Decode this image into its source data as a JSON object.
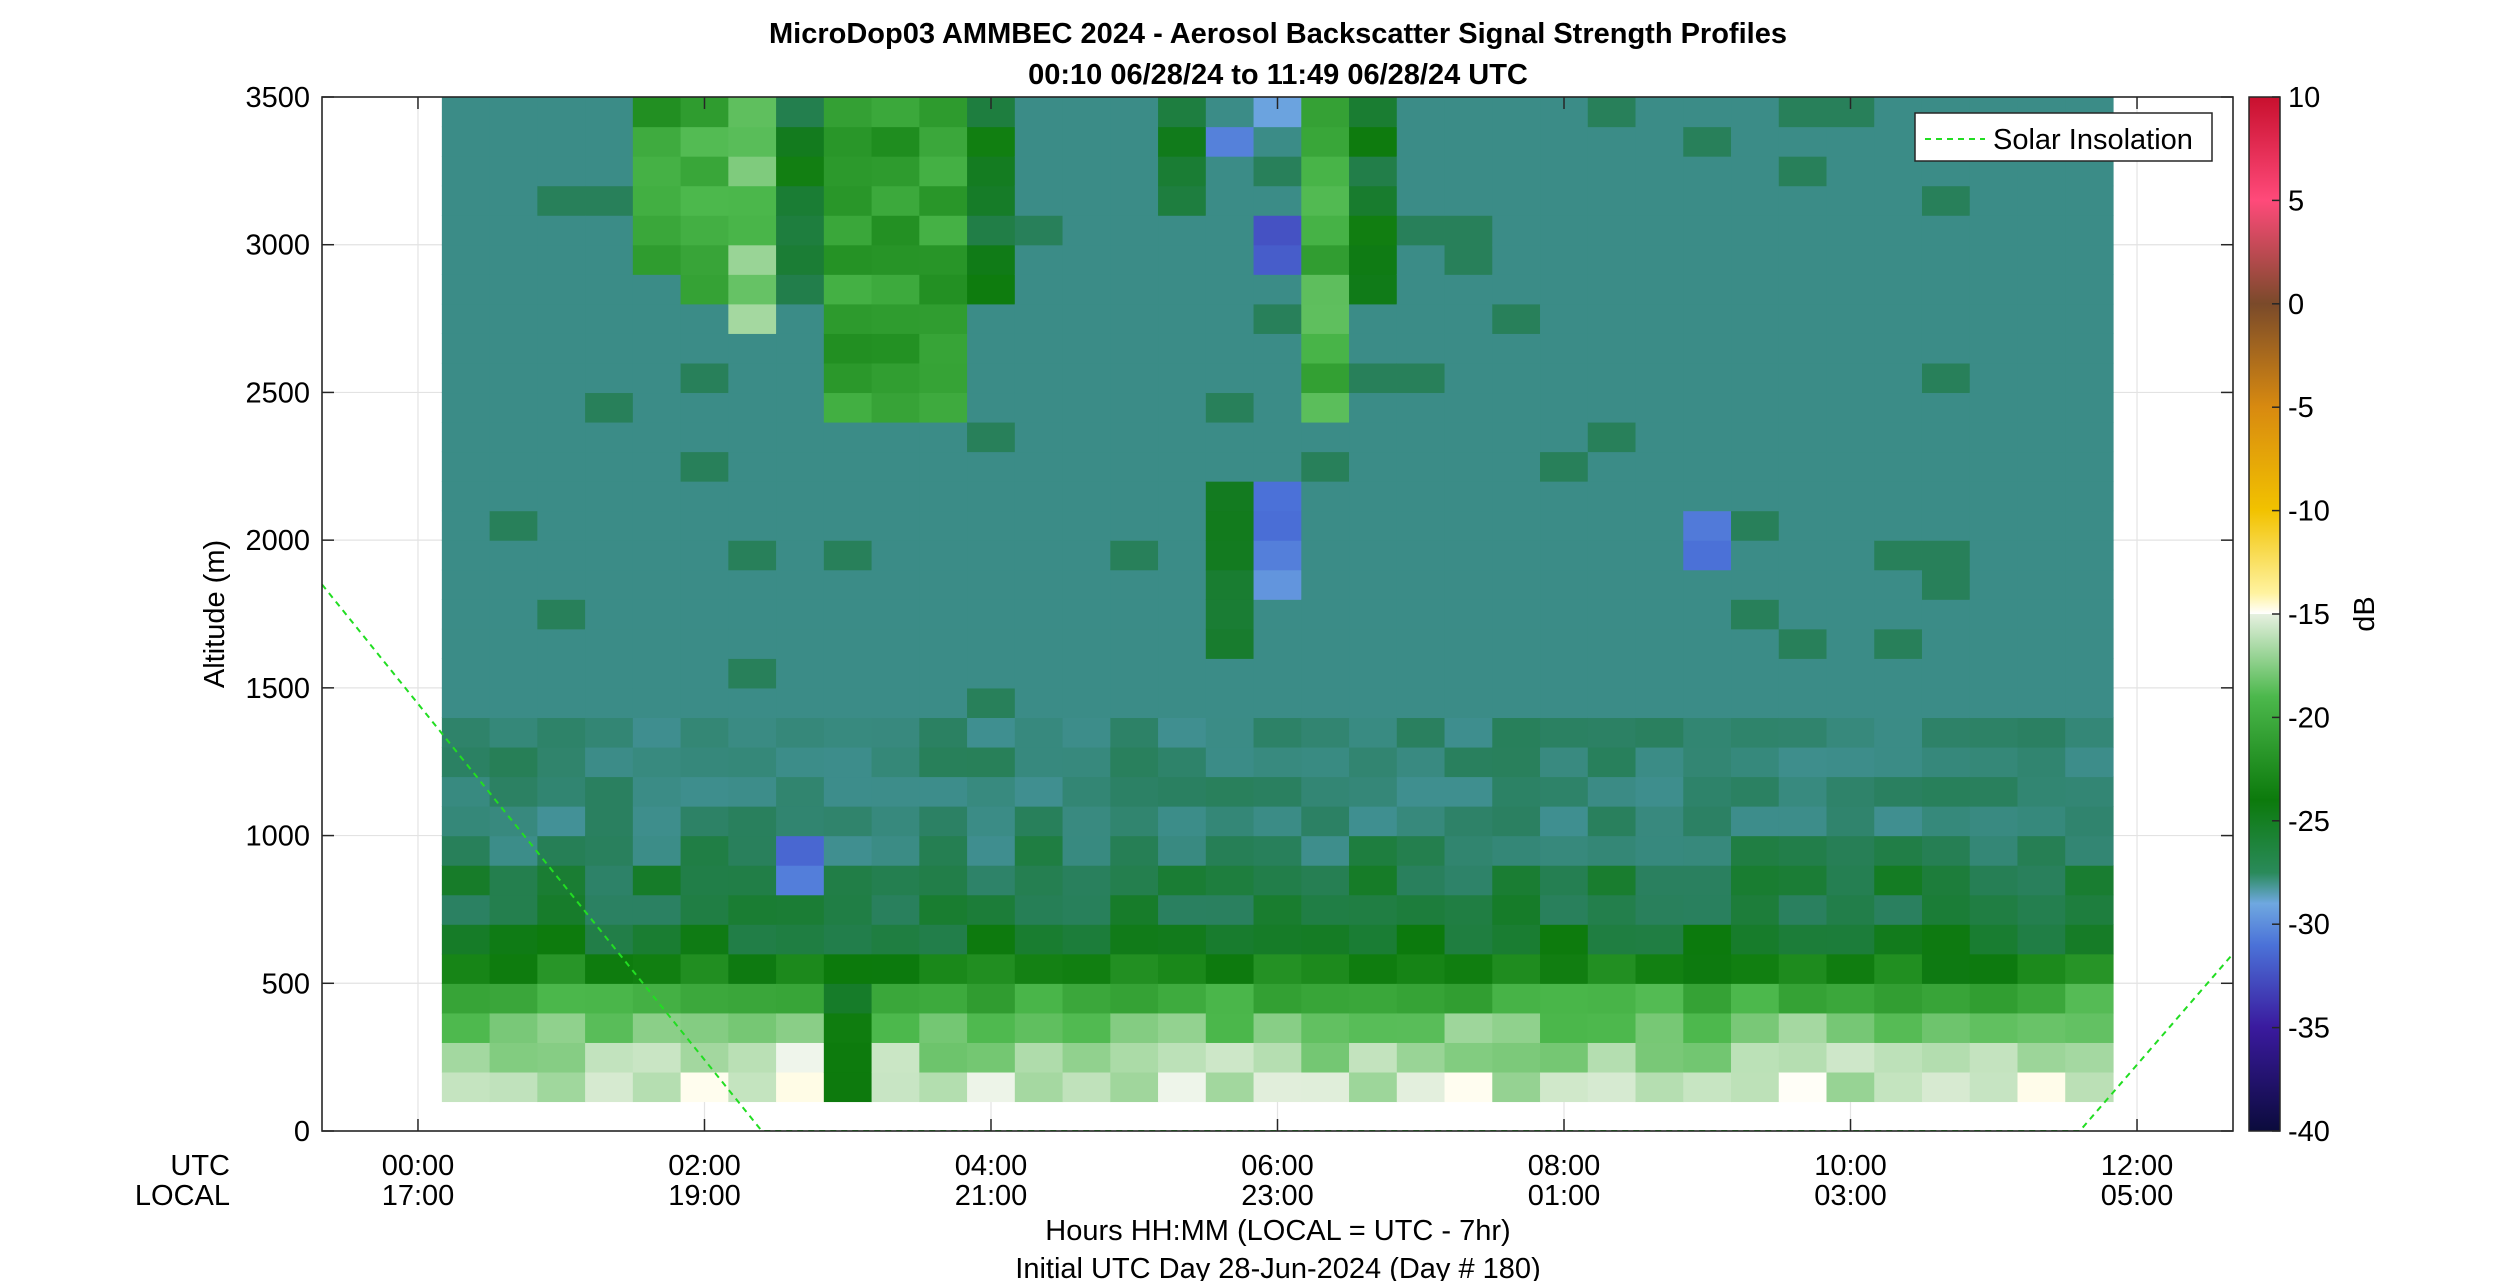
{
  "chart_data": {
    "type": "heatmap",
    "title": "MicroDop03 AMMBEC 2024 - Aerosol Backscatter Signal Strength Profiles",
    "subtitle": "00:10 06/28/24 to 11:49 06/28/24  UTC",
    "ylabel": "Altitude (m)",
    "xlabel": "Hours HH:MM  (LOCAL = UTC - 7hr)",
    "xlabel2": "Initial UTC Day 28-Jun-2024 (Day # 180)",
    "row_labels": {
      "utc": "UTC",
      "local": "LOCAL"
    },
    "x_ticks_utc": [
      "00:00",
      "02:00",
      "04:00",
      "06:00",
      "08:00",
      "10:00",
      "12:00"
    ],
    "x_ticks_local": [
      "17:00",
      "19:00",
      "21:00",
      "23:00",
      "01:00",
      "03:00",
      "05:00"
    ],
    "xlim_hours": [
      -0.67,
      12.67
    ],
    "y_ticks": [
      "0",
      "500",
      "1000",
      "1500",
      "2000",
      "2500",
      "3000",
      "3500"
    ],
    "ylim": [
      0,
      3500
    ],
    "colorbar": {
      "label": "dB",
      "ticks": [
        "10",
        "5",
        "0",
        "-5",
        "-10",
        "-15",
        "-20",
        "-25",
        "-30",
        "-35",
        "-40"
      ],
      "range": [
        -40,
        10
      ]
    },
    "legend": {
      "label": "Solar Insolation",
      "position": "top-right",
      "color": "#22dd22"
    },
    "grid": true,
    "data_start_hour": 0.1667,
    "data_end_hour": 11.8167,
    "profile_interval_hours": 0.3333,
    "altitude_start_m": 100,
    "altitude_step_m": 100,
    "background_value_db": -28,
    "lowlevel_profile_db": [
      -16,
      -17,
      -18,
      -20,
      -23,
      -25,
      -26,
      -26,
      -27
    ],
    "features": [
      {
        "hours": [
          0.5,
          1.0
        ],
        "altitude": [
          1000,
          1300
        ],
        "value_db": -27
      },
      {
        "hours": [
          1.5,
          1.9
        ],
        "altitude": [
          2900,
          3500
        ],
        "value_db": -21
      },
      {
        "hours": [
          1.9,
          2.2
        ],
        "altitude": [
          2800,
          3500
        ],
        "value_db": -20
      },
      {
        "hours": [
          2.2,
          2.55
        ],
        "altitude": [
          2700,
          3500
        ],
        "value_db": -18
      },
      {
        "hours": [
          2.35,
          2.55
        ],
        "altitude": [
          1500,
          2700
        ],
        "value_db": -26
      },
      {
        "hours": [
          2.55,
          2.95
        ],
        "altitude": [
          2800,
          3500
        ],
        "value_db": -25
      },
      {
        "hours": [
          2.95,
          3.7
        ],
        "altitude": [
          2400,
          3500
        ],
        "value_db": -21
      },
      {
        "hours": [
          3.7,
          4.0
        ],
        "altitude": [
          2850,
          3500
        ],
        "value_db": -25
      },
      {
        "hours": [
          5.1,
          5.4
        ],
        "altitude": [
          3150,
          3500
        ],
        "value_db": -25
      },
      {
        "hours": [
          5.4,
          5.7
        ],
        "altitude": [
          1650,
          2200
        ],
        "value_db": -26
      },
      {
        "hours": [
          6.15,
          6.5
        ],
        "altitude": [
          2450,
          3500
        ],
        "value_db": -20
      },
      {
        "hours": [
          6.5,
          6.8
        ],
        "altitude": [
          2800,
          3500
        ],
        "value_db": -25
      },
      {
        "hours": [
          2.95,
          3.05
        ],
        "altitude": [
          100,
          450
        ],
        "value_db": -25
      },
      {
        "hours": [
          2.1,
          2.95
        ],
        "altitude": [
          100,
          320
        ],
        "value_db": -16
      },
      {
        "hours": [
          2.95,
          3.3
        ],
        "altitude": [
          100,
          350
        ],
        "value_db": -24
      },
      {
        "hours": [
          5.9,
          6.2
        ],
        "altitude": [
          3450,
          3520
        ],
        "value_db": -31
      },
      {
        "hours": [
          5.9,
          6.2
        ],
        "altitude": [
          2950,
          3050
        ],
        "value_db": -31
      },
      {
        "hours": [
          5.9,
          6.2
        ],
        "altitude": [
          2050,
          2150
        ],
        "value_db": -31
      },
      {
        "hours": [
          5.9,
          6.2
        ],
        "altitude": [
          1850,
          1950
        ],
        "value_db": -31
      },
      {
        "hours": [
          8.75,
          9.15
        ],
        "altitude": [
          1950,
          2050
        ],
        "value_db": -31
      },
      {
        "hours": [
          2.35,
          2.75
        ],
        "altitude": [
          850,
          950
        ],
        "value_db": -31
      },
      {
        "hours": [
          5.4,
          5.7
        ],
        "altitude": [
          3300,
          3400
        ],
        "value_db": -31
      }
    ],
    "solar_insolation": {
      "hours": [
        -0.67,
        2.4,
        11.6,
        12.67
      ],
      "altitude_equiv": [
        1850,
        0,
        0,
        600
      ]
    }
  }
}
